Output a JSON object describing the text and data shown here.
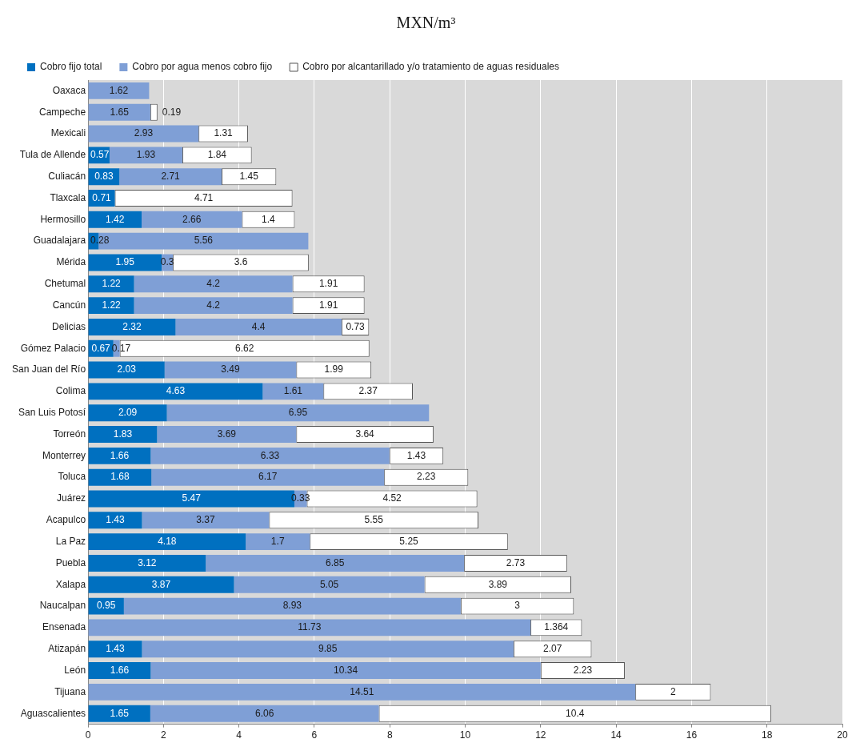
{
  "chart_data": {
    "type": "bar",
    "orientation": "horizontal",
    "stacked": true,
    "title": "MXN/m³",
    "categories": [
      "Oaxaca",
      "Campeche",
      "Mexicali",
      "Tula de Allende",
      "Culiacán",
      "Tlaxcala",
      "Hermosillo",
      "Guadalajara",
      "Mérida",
      "Chetumal",
      "Cancún",
      "Delicias",
      "Gómez Palacio",
      "San Juan del Río",
      "Colima",
      "San Luis Potosí",
      "Torreón",
      "Monterrey",
      "Toluca",
      "Juárez",
      "Acapulco",
      "La Paz",
      "Puebla",
      "Xalapa",
      "Naucalpan",
      "Ensenada",
      "Atizapán",
      "León",
      "Tijuana",
      "Aguascalientes"
    ],
    "series": [
      {
        "name": "Cobro fijo total",
        "color": "#0070c0",
        "values": [
          null,
          null,
          null,
          0.57,
          0.83,
          0.71,
          1.42,
          0.28,
          1.95,
          1.22,
          1.22,
          2.32,
          0.67,
          2.03,
          4.63,
          2.09,
          1.83,
          1.66,
          1.68,
          5.47,
          1.43,
          4.18,
          3.12,
          3.87,
          0.95,
          null,
          1.43,
          1.66,
          null,
          1.65
        ]
      },
      {
        "name": "Cobro por agua menos cobro fijo",
        "color": "#7f9fd6",
        "values": [
          1.62,
          1.65,
          2.93,
          1.93,
          2.71,
          null,
          2.66,
          5.56,
          0.3,
          4.2,
          4.2,
          4.4,
          0.17,
          3.49,
          1.61,
          6.95,
          3.69,
          6.33,
          6.17,
          0.33,
          3.37,
          1.7,
          6.85,
          5.05,
          8.93,
          11.73,
          9.85,
          10.34,
          14.51,
          6.06
        ]
      },
      {
        "name": "Cobro por alcantarillado y/o tratamiento de aguas residuales",
        "color": "#ffffff",
        "values": [
          null,
          0.19,
          1.31,
          1.84,
          1.45,
          4.71,
          1.4,
          null,
          3.6,
          1.91,
          1.91,
          0.73,
          6.62,
          1.99,
          2.37,
          null,
          3.64,
          1.43,
          2.23,
          4.52,
          5.55,
          5.25,
          2.73,
          3.89,
          3,
          1.364,
          2.07,
          2.23,
          2,
          10.4
        ]
      }
    ],
    "xlim": [
      0,
      20
    ],
    "xticks": [
      0,
      2,
      4,
      6,
      8,
      10,
      12,
      14,
      16,
      18,
      20
    ],
    "grid": "x",
    "legend": "top",
    "data_labels": true
  }
}
